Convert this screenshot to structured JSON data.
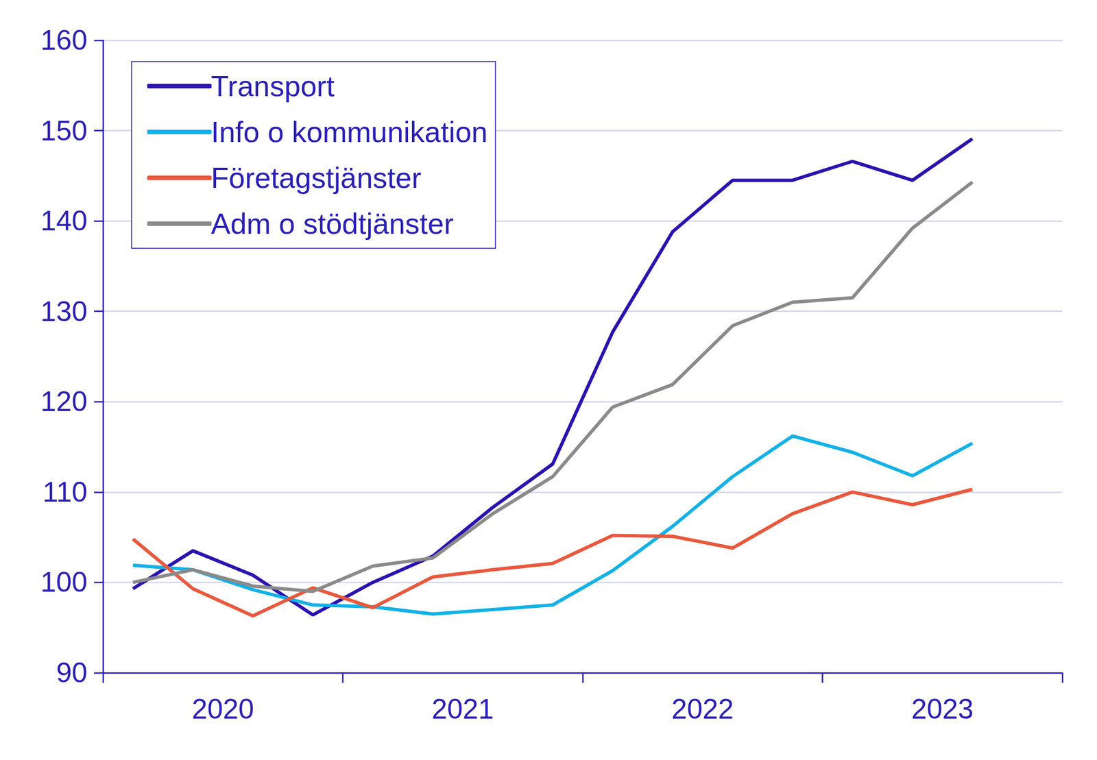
{
  "chart_data": {
    "type": "line",
    "categories": [
      null,
      "2020",
      null,
      null,
      null,
      "2021",
      null,
      null,
      null,
      "2022",
      null,
      null,
      null,
      "2023",
      null,
      null
    ],
    "series": [
      {
        "name": "Transport",
        "color": "#2b12b0",
        "values": [
          99.3,
          103.5,
          100.8,
          96.4,
          100.0,
          102.9,
          108.3,
          113.1,
          127.7,
          138.8,
          144.5,
          144.5,
          146.6,
          144.5,
          149.1,
          null
        ]
      },
      {
        "name": "Info o kommunikation",
        "color": "#13b1e6",
        "values": [
          101.9,
          101.4,
          99.2,
          97.5,
          97.3,
          96.5,
          97.0,
          97.5,
          101.3,
          106.2,
          111.7,
          116.2,
          114.4,
          111.8,
          115.4,
          null
        ]
      },
      {
        "name": "Företagstjänster",
        "color": "#e9583d",
        "values": [
          104.8,
          99.3,
          96.3,
          99.4,
          97.2,
          100.6,
          101.4,
          102.1,
          105.2,
          105.1,
          103.8,
          107.6,
          110.0,
          108.6,
          110.3,
          null
        ]
      },
      {
        "name": "Adm o stödtjänster",
        "color": "#8a8a8a",
        "values": [
          100.0,
          101.4,
          99.6,
          99.0,
          101.8,
          102.7,
          107.6,
          111.7,
          119.4,
          121.9,
          128.4,
          131.0,
          131.5,
          139.2,
          144.3,
          null
        ]
      }
    ],
    "ylim": [
      90,
      160
    ],
    "yticks": [
      90,
      100,
      110,
      120,
      130,
      140,
      150,
      160
    ],
    "grid": true,
    "legend": "upper left"
  }
}
